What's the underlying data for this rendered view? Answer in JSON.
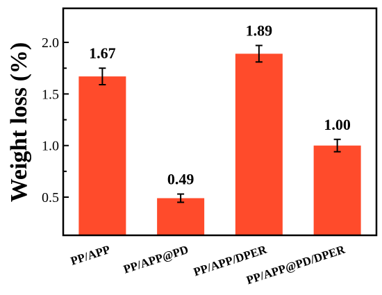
{
  "chart_data": {
    "type": "bar",
    "categories": [
      "PP/APP",
      "PP/APP@PD",
      "PP/APP/DPER",
      "PP/APP@PD/DPER"
    ],
    "values": [
      1.67,
      0.49,
      1.89,
      1.0
    ],
    "errors": [
      0.08,
      0.04,
      0.08,
      0.06
    ],
    "data_labels": [
      "1.67",
      "0.49",
      "1.89",
      "1.00"
    ],
    "title": "",
    "xlabel": "",
    "ylabel": "Weight loss (%)",
    "ylim": [
      0.13,
      2.33
    ],
    "yticks": [
      0.5,
      1.0,
      1.5,
      2.0
    ],
    "ytick_labels": [
      "0.5",
      "1.0",
      "1.5",
      "2.0"
    ],
    "bar_color": "#ff4b2b",
    "grid": false
  }
}
